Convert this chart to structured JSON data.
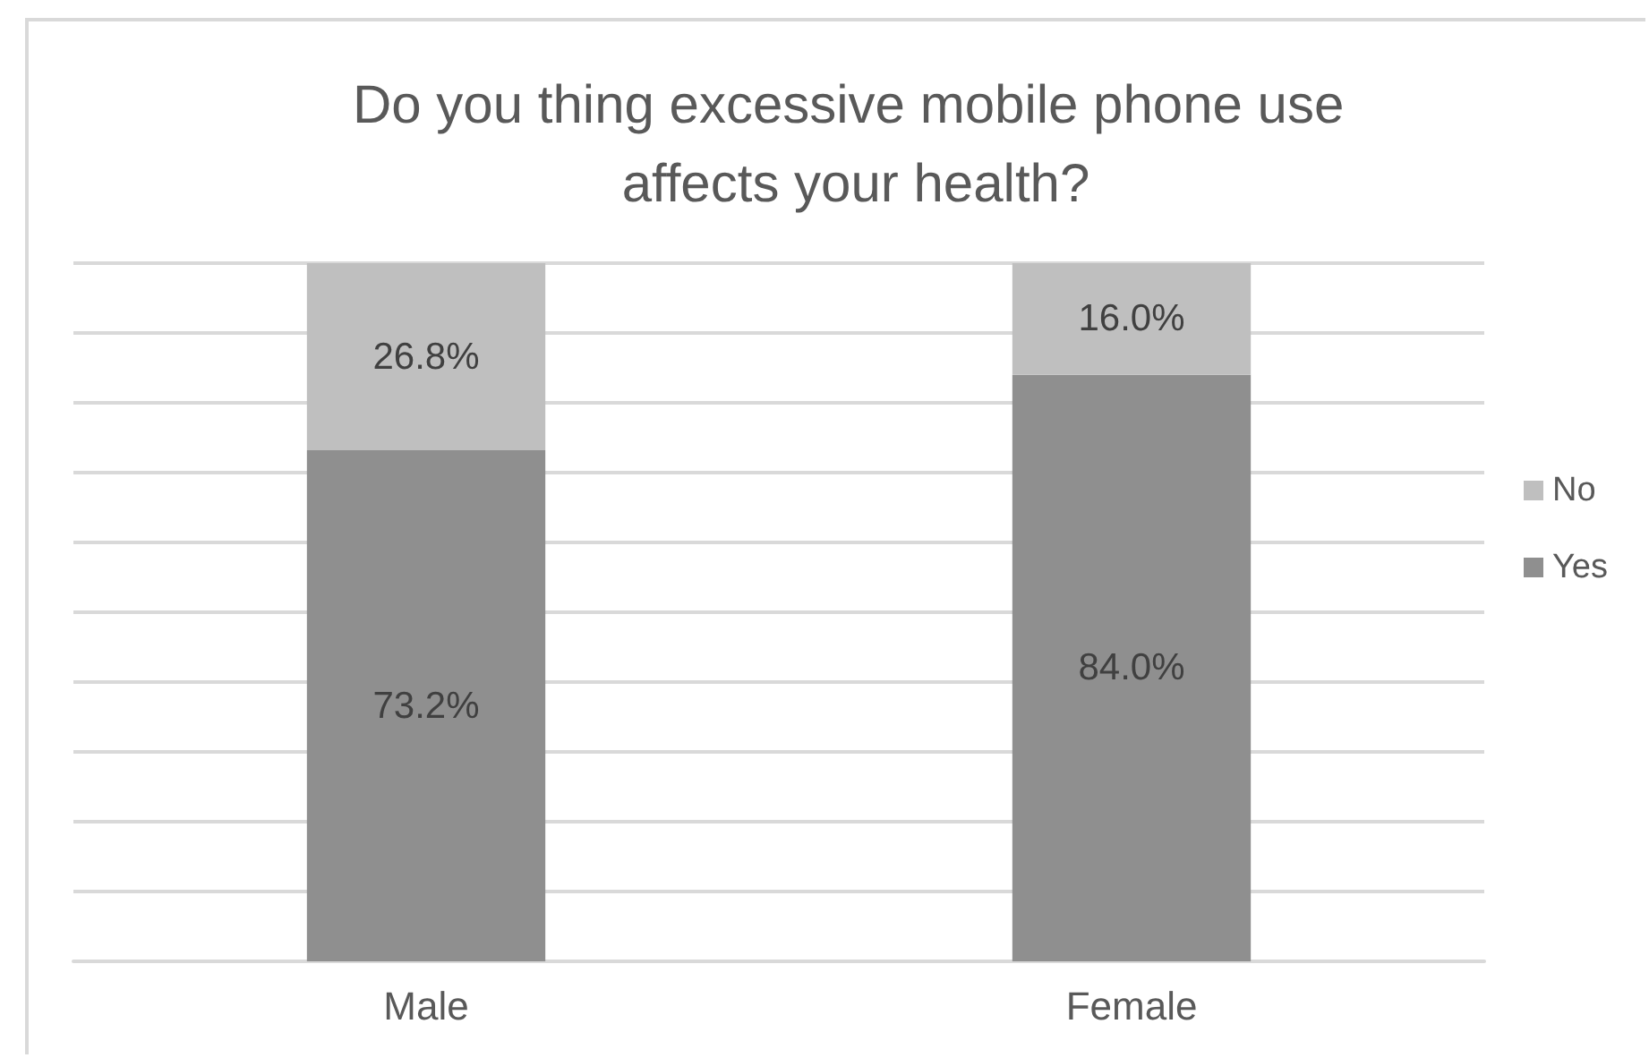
{
  "chart_data": {
    "type": "bar",
    "title": "Do you thing excessive mobile phone use affects your health?",
    "categories": [
      "Male",
      "Female"
    ],
    "series": [
      {
        "name": "Yes",
        "color": "#8f8f8f",
        "values": [
          73.2,
          84.0
        ],
        "value_labels": [
          "73.2%",
          "84.0%"
        ]
      },
      {
        "name": "No",
        "color": "#bfbfbf",
        "values": [
          26.8,
          16.0
        ],
        "value_labels": [
          "26.8%",
          "16.0%"
        ]
      }
    ],
    "stacked": true,
    "ylim": [
      0,
      100
    ],
    "yticks": [
      {
        "value": 0,
        "label": null
      },
      {
        "value": 10,
        "label": null
      },
      {
        "value": 20,
        "label": null
      },
      {
        "value": 30,
        "label": null
      },
      {
        "value": 40,
        "label": null
      },
      {
        "value": 50,
        "label": null
      },
      {
        "value": 60,
        "label": null
      },
      {
        "value": 70,
        "label": null
      },
      {
        "value": 80,
        "label": null
      },
      {
        "value": 90,
        "label": null
      },
      {
        "value": 100,
        "label": null
      }
    ],
    "tick_labels": "x",
    "grid": "y",
    "legend": "right"
  }
}
